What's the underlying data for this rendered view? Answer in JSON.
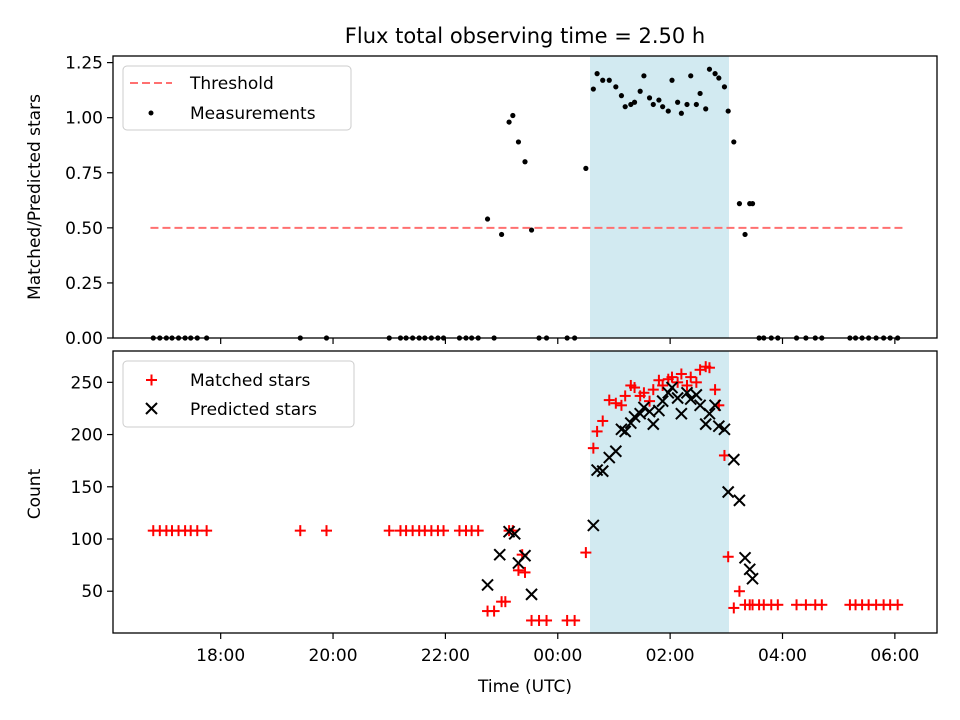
{
  "title": "Flux total observing time = 2.50 h",
  "chart_data": [
    {
      "type": "scatter",
      "panel": "top",
      "ylabel": "Matched/Predicted stars",
      "ylim": [
        0,
        1.28
      ],
      "xlim": [
        "16:05",
        "06:45"
      ],
      "yticks": [
        {
          "value": 0,
          "label": "0.00"
        },
        {
          "value": 0.25,
          "label": "0.25"
        },
        {
          "value": 0.5,
          "label": "0.50"
        },
        {
          "value": 0.75,
          "label": "0.75"
        },
        {
          "value": 1.0,
          "label": "1.00"
        },
        {
          "value": 1.25,
          "label": "1.25"
        }
      ],
      "legend_position": "top-left",
      "highlight_span": [
        "00:32",
        "03:04"
      ],
      "threshold": {
        "name": "Threshold",
        "y": 0.5,
        "x_range": [
          "16:45",
          "06:10"
        ],
        "color": "#ff7070"
      },
      "series": [
        {
          "name": "Measurements",
          "color": "#000000",
          "x": [
            "16:48",
            "16:55",
            "17:02",
            "17:08",
            "17:15",
            "17:22",
            "17:28",
            "17:35",
            "17:45",
            "19:25",
            "19:53",
            "21:00",
            "21:12",
            "21:18",
            "21:25",
            "21:32",
            "21:38",
            "21:45",
            "21:52",
            "21:58",
            "22:15",
            "22:22",
            "22:28",
            "22:35",
            "22:45",
            "22:52",
            "23:00",
            "23:08",
            "23:12",
            "23:18",
            "23:25",
            "23:32",
            "23:40",
            "23:48",
            "00:10",
            "00:18",
            "00:30",
            "00:38",
            "00:42",
            "00:48",
            "00:55",
            "01:02",
            "01:08",
            "01:12",
            "01:18",
            "01:22",
            "01:28",
            "01:32",
            "01:38",
            "01:42",
            "01:48",
            "01:52",
            "01:58",
            "02:02",
            "02:08",
            "02:12",
            "02:18",
            "02:22",
            "02:28",
            "02:32",
            "02:38",
            "02:42",
            "02:48",
            "02:52",
            "02:58",
            "03:02",
            "03:08",
            "03:14",
            "03:20",
            "03:25",
            "03:28",
            "03:35",
            "03:40",
            "03:48",
            "03:55",
            "04:15",
            "04:25",
            "04:35",
            "04:42",
            "05:12",
            "05:18",
            "05:25",
            "05:32",
            "05:40",
            "05:48",
            "05:55",
            "06:03"
          ],
          "y": [
            0,
            0,
            0,
            0,
            0,
            0,
            0,
            0,
            0,
            0,
            0,
            0,
            0,
            0,
            0,
            0,
            0,
            0,
            0,
            0,
            0,
            0,
            0,
            0,
            0.54,
            0,
            0.47,
            0.98,
            1.01,
            0.89,
            0.8,
            0.49,
            0,
            0,
            0,
            0,
            0.77,
            1.13,
            1.2,
            1.17,
            1.17,
            1.14,
            1.1,
            1.05,
            1.06,
            1.07,
            1.12,
            1.19,
            1.09,
            1.06,
            1.08,
            1.05,
            1.03,
            1.17,
            1.07,
            1.02,
            1.06,
            1.19,
            1.06,
            1.11,
            1.04,
            1.22,
            1.2,
            1.18,
            1.14,
            1.03,
            0.89,
            0.61,
            0.47,
            0.61,
            0.61,
            0,
            0,
            0,
            0,
            0,
            0,
            0,
            0,
            0,
            0,
            0,
            0,
            0,
            0,
            0,
            0
          ]
        }
      ]
    },
    {
      "type": "scatter",
      "panel": "bottom",
      "xlabel": "Time (UTC)",
      "ylabel": "Count",
      "ylim": [
        10,
        280
      ],
      "xlim": [
        "16:05",
        "06:45"
      ],
      "yticks": [
        {
          "value": 50,
          "label": "50"
        },
        {
          "value": 100,
          "label": "100"
        },
        {
          "value": 150,
          "label": "150"
        },
        {
          "value": 200,
          "label": "200"
        },
        {
          "value": 250,
          "label": "250"
        }
      ],
      "xticks": [
        {
          "value": "18:00",
          "label": "18:00"
        },
        {
          "value": "20:00",
          "label": "20:00"
        },
        {
          "value": "22:00",
          "label": "22:00"
        },
        {
          "value": "00:00",
          "label": "00:00"
        },
        {
          "value": "02:00",
          "label": "02:00"
        },
        {
          "value": "04:00",
          "label": "04:00"
        },
        {
          "value": "06:00",
          "label": "06:00"
        }
      ],
      "legend_position": "top-left",
      "highlight_span": [
        "00:32",
        "03:04"
      ],
      "series": [
        {
          "name": "Matched stars",
          "color": "#ff0000",
          "marker": "plus",
          "x": [
            "16:48",
            "16:55",
            "17:02",
            "17:08",
            "17:15",
            "17:22",
            "17:28",
            "17:35",
            "17:45",
            "19:25",
            "19:53",
            "21:00",
            "21:12",
            "21:18",
            "21:25",
            "21:32",
            "21:38",
            "21:45",
            "21:52",
            "21:58",
            "22:15",
            "22:22",
            "22:28",
            "22:35",
            "22:45",
            "22:52",
            "23:00",
            "23:04",
            "23:08",
            "23:12",
            "23:18",
            "23:22",
            "23:25",
            "23:32",
            "23:40",
            "23:48",
            "00:10",
            "00:18",
            "00:30",
            "00:38",
            "00:42",
            "00:48",
            "00:55",
            "01:02",
            "01:08",
            "01:12",
            "01:18",
            "01:22",
            "01:28",
            "01:32",
            "01:38",
            "01:42",
            "01:48",
            "01:52",
            "01:58",
            "02:02",
            "02:08",
            "02:12",
            "02:18",
            "02:22",
            "02:28",
            "02:32",
            "02:38",
            "02:42",
            "02:48",
            "02:52",
            "02:58",
            "03:02",
            "03:08",
            "03:14",
            "03:20",
            "03:25",
            "03:28",
            "03:35",
            "03:40",
            "03:48",
            "03:55",
            "04:15",
            "04:25",
            "04:35",
            "04:42",
            "05:12",
            "05:18",
            "05:25",
            "05:32",
            "05:40",
            "05:48",
            "05:55",
            "06:03"
          ],
          "y": [
            108,
            108,
            108,
            108,
            108,
            108,
            108,
            108,
            108,
            108,
            108,
            108,
            108,
            108,
            108,
            108,
            108,
            108,
            108,
            108,
            108,
            108,
            108,
            108,
            31,
            31,
            40,
            40,
            108,
            108,
            70,
            85,
            68,
            22,
            22,
            22,
            22,
            22,
            87,
            187,
            203,
            213,
            233,
            230,
            228,
            237,
            247,
            245,
            237,
            240,
            232,
            243,
            252,
            247,
            253,
            255,
            250,
            258,
            247,
            255,
            250,
            262,
            265,
            264,
            243,
            228,
            180,
            83,
            34,
            50,
            37,
            37,
            37,
            37,
            37,
            37,
            37,
            37,
            37,
            37,
            37,
            37,
            37,
            37,
            37,
            37,
            37,
            37,
            37
          ]
        },
        {
          "name": "Predicted stars",
          "color": "#000000",
          "marker": "x",
          "x": [
            "22:45",
            "22:58",
            "23:08",
            "23:14",
            "23:18",
            "23:25",
            "23:32",
            "00:38",
            "00:42",
            "00:48",
            "00:55",
            "01:02",
            "01:08",
            "01:12",
            "01:18",
            "01:22",
            "01:28",
            "01:32",
            "01:38",
            "01:42",
            "01:48",
            "01:52",
            "01:58",
            "02:02",
            "02:08",
            "02:12",
            "02:18",
            "02:22",
            "02:28",
            "02:32",
            "02:38",
            "02:42",
            "02:48",
            "02:52",
            "02:58",
            "03:02",
            "03:08",
            "03:14",
            "03:20",
            "03:25",
            "03:28"
          ],
          "y": [
            56,
            85,
            107,
            105,
            77,
            84,
            47,
            113,
            166,
            165,
            178,
            184,
            205,
            203,
            211,
            217,
            220,
            226,
            222,
            210,
            223,
            232,
            240,
            245,
            235,
            220,
            240,
            234,
            238,
            228,
            210,
            220,
            228,
            208,
            205,
            145,
            176,
            137,
            82,
            71,
            62
          ]
        }
      ]
    }
  ]
}
